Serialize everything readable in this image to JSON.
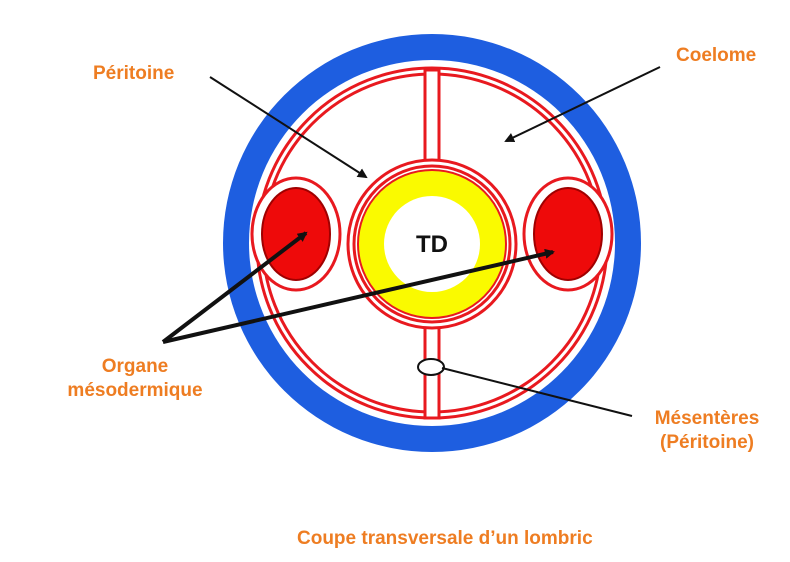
{
  "labels": {
    "peritoine": "Péritoine",
    "coelome": "Coelome",
    "organe_line1": "Organe",
    "organe_line2": "mésodermique",
    "mesenteres_line1": "Mésentères",
    "mesenteres_line2": "(Péritoine)",
    "caption": "Coupe transversale d’un lombric",
    "td": "TD"
  },
  "colors": {
    "label": "#ee7d22",
    "body_wall": "#1e5ee0",
    "peritoneum": "#e8191f",
    "mesodermic_organ": "#ee0a0a",
    "digestive_tube": "#fafa00",
    "arrow": "#111111"
  }
}
